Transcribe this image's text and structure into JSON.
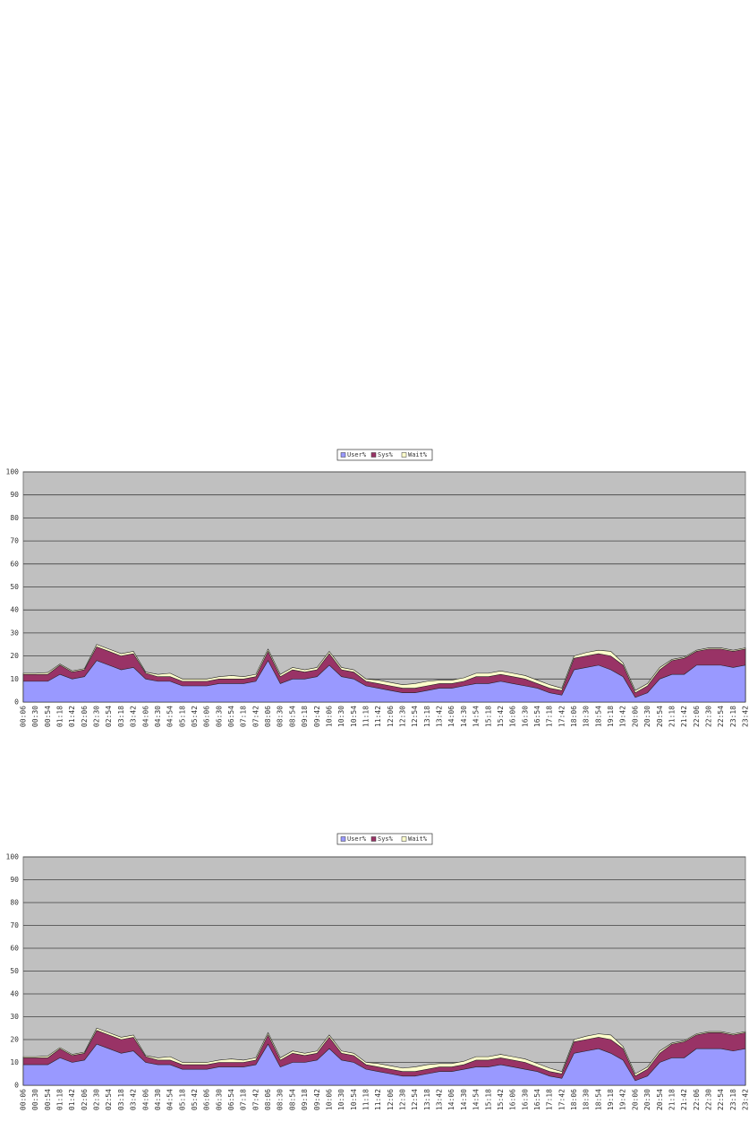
{
  "chart_data": [
    {
      "type": "stacked-area",
      "categories": [
        "00:06",
        "00:30",
        "00:54",
        "01:18",
        "01:42",
        "02:06",
        "02:30",
        "02:54",
        "03:18",
        "03:42",
        "04:06",
        "04:30",
        "04:54",
        "05:18",
        "05:42",
        "06:06",
        "06:30",
        "06:54",
        "07:18",
        "07:42",
        "08:06",
        "08:30",
        "08:54",
        "09:18",
        "09:42",
        "10:06",
        "10:30",
        "10:54",
        "11:18",
        "11:42",
        "12:06",
        "12:30",
        "12:54",
        "13:18",
        "13:42",
        "14:06",
        "14:30",
        "14:54",
        "15:18",
        "15:42",
        "16:06",
        "16:30",
        "16:54",
        "17:18",
        "17:42",
        "18:06",
        "18:30",
        "18:54",
        "19:18",
        "19:42",
        "20:06",
        "20:30",
        "20:54",
        "21:18",
        "21:42",
        "22:06",
        "22:30",
        "22:54",
        "23:18",
        "23:42"
      ],
      "series": [
        {
          "name": "User%",
          "color": "#9999ff",
          "values": [
            9,
            9,
            9,
            12,
            10,
            11,
            18,
            16,
            14,
            15,
            10,
            9,
            9,
            7,
            7,
            7,
            8,
            8,
            8,
            9,
            18,
            8,
            10,
            10,
            11,
            16,
            11,
            10,
            7,
            6,
            5,
            4,
            4,
            5,
            6,
            6,
            7,
            8,
            8,
            9,
            8,
            7,
            6,
            4,
            3,
            14,
            15,
            16,
            14,
            11,
            2,
            4,
            10,
            12,
            12,
            16,
            16,
            16,
            15,
            16
          ]
        },
        {
          "name": "Sys%",
          "color": "#993366",
          "values": [
            3,
            3,
            3,
            4,
            3,
            3,
            6,
            6,
            6,
            6,
            2.5,
            2,
            2,
            2,
            2,
            2,
            2,
            2,
            2,
            2,
            4,
            3,
            4,
            3,
            3,
            5,
            3,
            3,
            2,
            2,
            2,
            2,
            2,
            2,
            2,
            2,
            2,
            3,
            3,
            3,
            3,
            3,
            2,
            2,
            2,
            5,
            5,
            5,
            6,
            5,
            2,
            3,
            4,
            6,
            7,
            6,
            7,
            7,
            7,
            7
          ]
        },
        {
          "name": "Wait%",
          "color": "#ffffcc",
          "values": [
            0.5,
            0.5,
            0.8,
            0.5,
            0.5,
            0.5,
            1,
            1,
            1,
            1,
            0.5,
            1,
            1.5,
            1,
            1,
            1,
            1,
            1.5,
            1,
            1,
            1,
            1,
            1,
            1,
            1,
            1,
            1,
            1,
            1,
            1.5,
            1.5,
            1.5,
            2,
            2,
            1.5,
            1.5,
            1.5,
            1.5,
            1.5,
            1.5,
            1.5,
            1.5,
            1.5,
            1.5,
            1,
            1,
            1.5,
            1.5,
            2,
            1,
            1,
            1,
            1,
            0.5,
            0.5,
            0.5,
            0.5,
            0.5,
            0.5,
            0.5
          ]
        }
      ],
      "ylim": [
        0,
        100
      ],
      "yticks": [
        0,
        10,
        20,
        30,
        40,
        50,
        60,
        70,
        80,
        90,
        100
      ],
      "grid": true,
      "legend": "top"
    },
    {
      "type": "stacked-area",
      "categories": [
        "00:06",
        "00:30",
        "00:54",
        "01:18",
        "01:42",
        "02:06",
        "02:30",
        "02:54",
        "03:18",
        "03:42",
        "04:06",
        "04:30",
        "04:54",
        "05:18",
        "05:42",
        "06:06",
        "06:30",
        "06:54",
        "07:18",
        "07:42",
        "08:06",
        "08:30",
        "08:54",
        "09:18",
        "09:42",
        "10:06",
        "10:30",
        "10:54",
        "11:18",
        "11:42",
        "12:06",
        "12:30",
        "12:54",
        "13:18",
        "13:42",
        "14:06",
        "14:30",
        "14:54",
        "15:18",
        "15:42",
        "16:06",
        "16:30",
        "16:54",
        "17:18",
        "17:42",
        "18:06",
        "18:30",
        "18:54",
        "19:18",
        "19:42",
        "20:06",
        "20:30",
        "20:54",
        "21:18",
        "21:42",
        "22:06",
        "22:30",
        "22:54",
        "23:18",
        "23:42"
      ],
      "series": [
        {
          "name": "User%",
          "color": "#9999ff",
          "values": [
            9,
            9,
            9,
            12,
            10,
            11,
            18,
            16,
            14,
            15,
            10,
            9,
            9,
            7,
            7,
            7,
            8,
            8,
            8,
            9,
            18,
            8,
            10,
            10,
            11,
            16,
            11,
            10,
            7,
            6,
            5,
            4,
            4,
            5,
            6,
            6,
            7,
            8,
            8,
            9,
            8,
            7,
            6,
            4,
            3,
            14,
            15,
            16,
            14,
            11,
            2,
            4,
            10,
            12,
            12,
            16,
            16,
            16,
            15,
            16
          ]
        },
        {
          "name": "Sys%",
          "color": "#993366",
          "values": [
            3,
            3,
            3,
            4,
            3,
            3,
            6,
            6,
            6,
            6,
            2.5,
            2,
            2,
            2,
            2,
            2,
            2,
            2,
            2,
            2,
            4,
            3,
            4,
            3,
            3,
            5,
            3,
            3,
            2,
            2,
            2,
            2,
            2,
            2,
            2,
            2,
            2,
            3,
            3,
            3,
            3,
            3,
            2,
            2,
            2,
            5,
            5,
            5,
            6,
            5,
            2,
            3,
            4,
            6,
            7,
            6,
            7,
            7,
            7,
            7
          ]
        },
        {
          "name": "Wait%",
          "color": "#ffffcc",
          "values": [
            0.5,
            0.5,
            0.8,
            0.5,
            0.5,
            0.5,
            1,
            1,
            1,
            1,
            0.5,
            1,
            1.5,
            1,
            1,
            1,
            1,
            1.5,
            1,
            1,
            1,
            1,
            1,
            1,
            1,
            1,
            1,
            1,
            1,
            1.5,
            1.5,
            1.5,
            2,
            2,
            1.5,
            1.5,
            1.5,
            1.5,
            1.5,
            1.5,
            1.5,
            1.5,
            1.5,
            1.5,
            1,
            1,
            1.5,
            1.5,
            2,
            1,
            1,
            1,
            1,
            0.5,
            0.5,
            0.5,
            0.5,
            0.5,
            0.5,
            0.5
          ]
        }
      ],
      "ylim": [
        0,
        100
      ],
      "yticks": [
        0,
        10,
        20,
        30,
        40,
        50,
        60,
        70,
        80,
        90,
        100
      ],
      "grid": true,
      "legend": "top"
    }
  ]
}
